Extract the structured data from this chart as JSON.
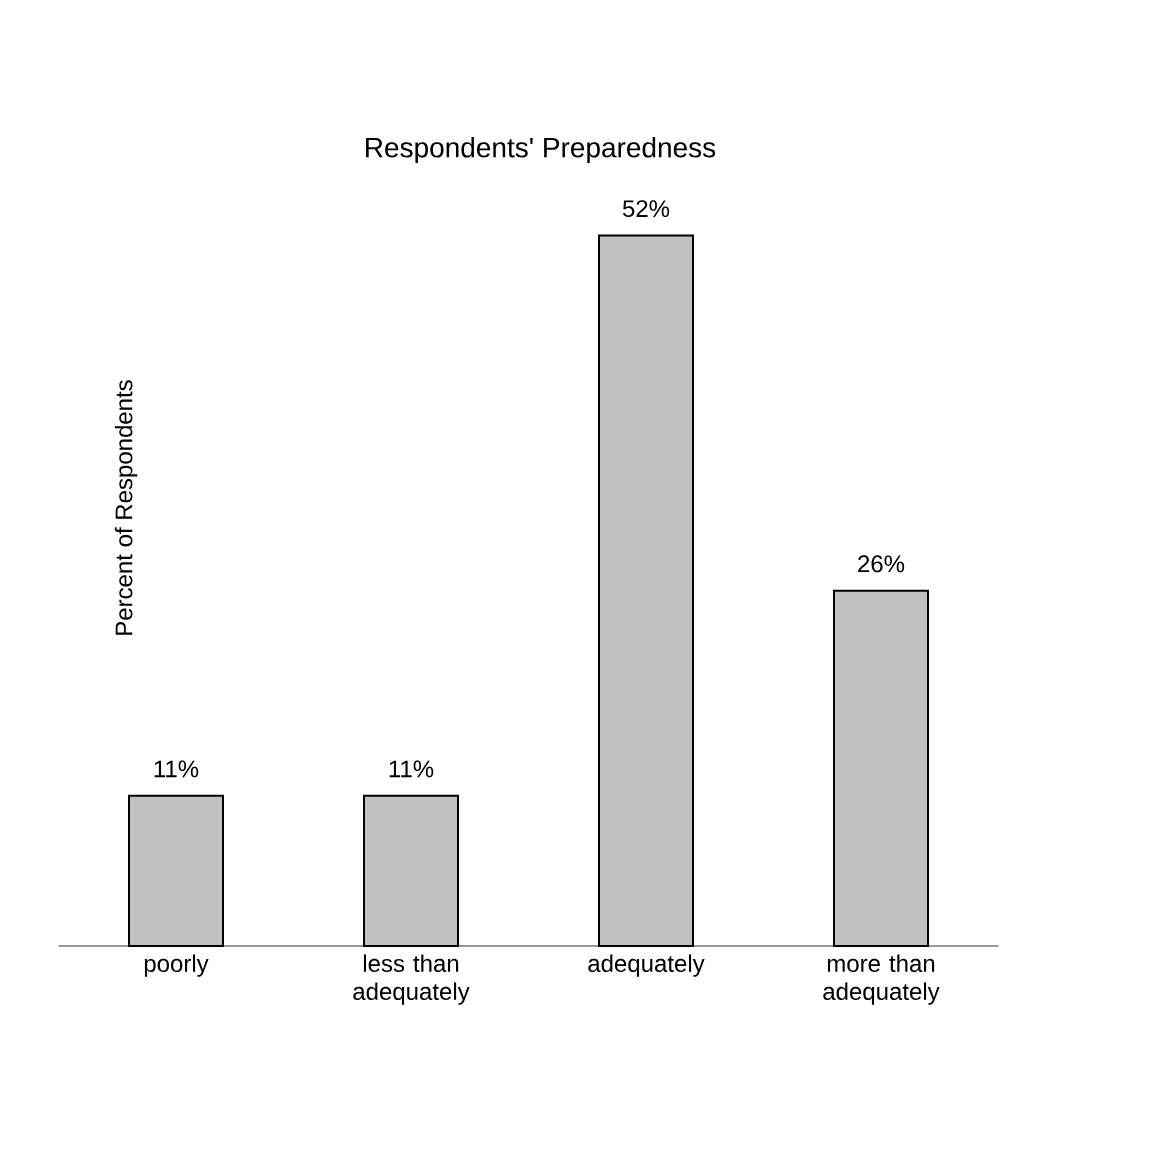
{
  "chart_data": {
    "type": "bar",
    "title": "Respondents' Preparedness",
    "ylabel": "Percent of Respondents",
    "categories": [
      "poorly",
      "less than adequately",
      "adequately",
      "more than adequately"
    ],
    "values": [
      11,
      11,
      52,
      26
    ],
    "value_labels": [
      "11%",
      "11%",
      "52%",
      "26%"
    ],
    "color": "#c0c0c0"
  }
}
